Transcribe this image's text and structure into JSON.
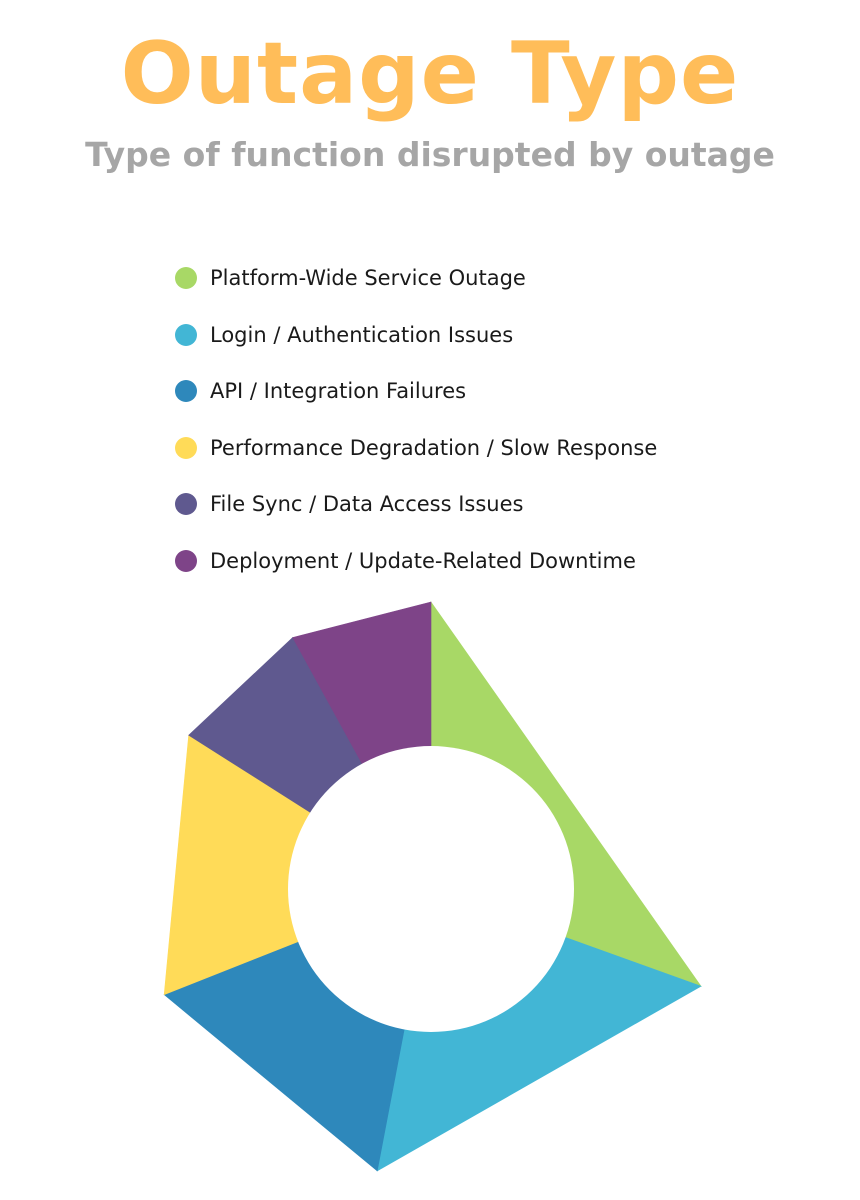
{
  "title": "Outage Type",
  "subtitle": "Type of function disrupted by outage",
  "chart_data": {
    "type": "pie",
    "variant": "donut",
    "title": "Outage Type",
    "subtitle": "Type of function disrupted by outage",
    "legend_placement": "top",
    "data_labels": false,
    "series": [
      {
        "name": "",
        "categories": [
          "Platform-Wide Service Outage",
          "Login / Authentication Issues",
          "API / Integration Failures",
          "Performance Degradation / Slow Response",
          "File Sync / Data Access Issues",
          "Deployment / Update-Related Downtime"
        ],
        "values": [
          30.5,
          22.5,
          16,
          15,
          8,
          8
        ],
        "colors": [
          "#a8d866",
          "#42b6d5",
          "#2e88bb",
          "#ffdb58",
          "#5f598f",
          "#7e4488"
        ]
      }
    ]
  }
}
